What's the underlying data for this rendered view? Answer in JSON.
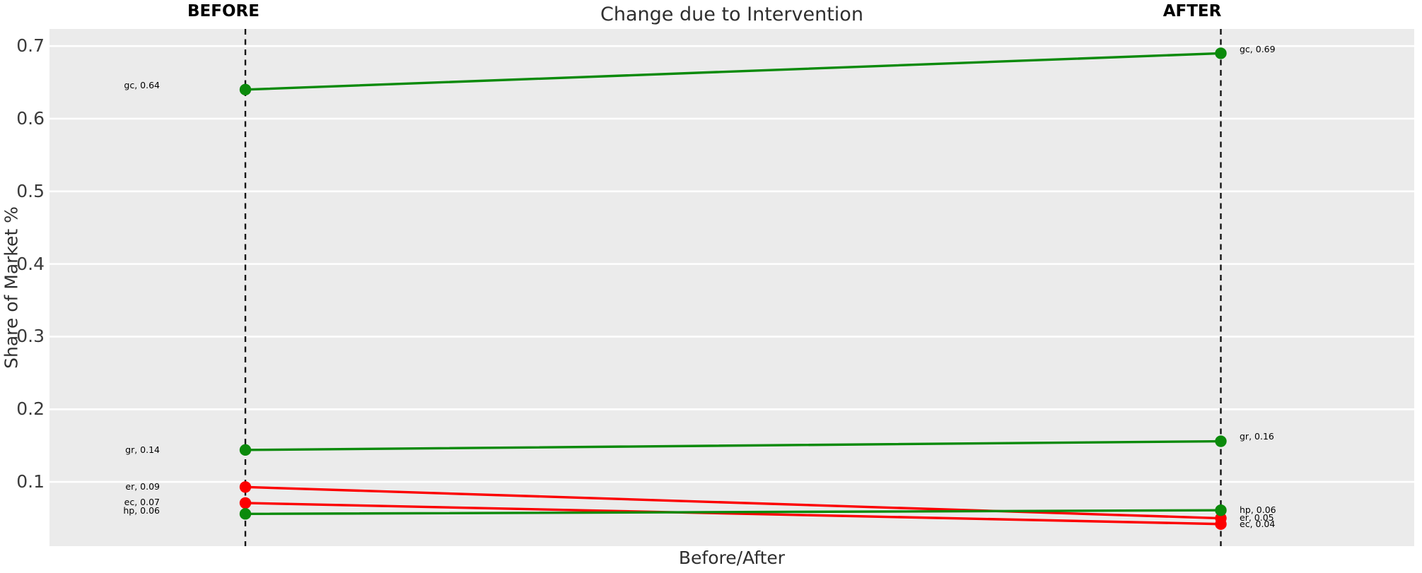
{
  "chart_data": {
    "type": "line",
    "variant": "slopegraph",
    "title": "Change due to Intervention",
    "xlabel": "Before/After",
    "ylabel": "Share of Market %",
    "columns": [
      "BEFORE",
      "AFTER"
    ],
    "ytick_labels": [
      "0.1",
      "0.2",
      "0.3",
      "0.4",
      "0.5",
      "0.6",
      "0.7"
    ],
    "yticks": [
      0.1,
      0.2,
      0.3,
      0.4,
      0.5,
      0.6,
      0.7
    ],
    "ylim": [
      0.0116,
      0.7235
    ],
    "grid": {
      "horizontal_major": true,
      "gridline_color": "#ffffff",
      "panel_color": "#ebebeb"
    },
    "series": [
      {
        "name": "gc",
        "trend": "increase",
        "values": [
          0.64,
          0.69
        ],
        "point_labels": [
          "gc, 0.64",
          "gc, 0.69"
        ],
        "label_anchor_y": [
          0.646,
          0.695
        ]
      },
      {
        "name": "gr",
        "trend": "increase",
        "values": [
          0.144,
          0.156
        ],
        "point_labels": [
          "gr, 0.14",
          "gr, 0.16"
        ],
        "label_anchor_y": [
          0.1435,
          0.162
        ]
      },
      {
        "name": "er",
        "trend": "decrease",
        "values": [
          0.093,
          0.05
        ],
        "point_labels": [
          "er, 0.09",
          "er, 0.05"
        ],
        "label_anchor_y": [
          0.0935,
          0.0503
        ]
      },
      {
        "name": "ec",
        "trend": "decrease",
        "values": [
          0.071,
          0.042
        ],
        "point_labels": [
          "ec, 0.07",
          "ec, 0.04"
        ],
        "label_anchor_y": [
          0.0715,
          0.0413
        ]
      },
      {
        "name": "hp",
        "trend": "increase",
        "values": [
          0.056,
          0.061
        ],
        "point_labels": [
          "hp, 0.06",
          "hp, 0.06"
        ],
        "label_anchor_y": [
          0.0605,
          0.0608
        ]
      }
    ],
    "colors": {
      "increase": "#0b8a0b",
      "decrease": "#fc0000",
      "dashed_guide": "#141414"
    }
  }
}
